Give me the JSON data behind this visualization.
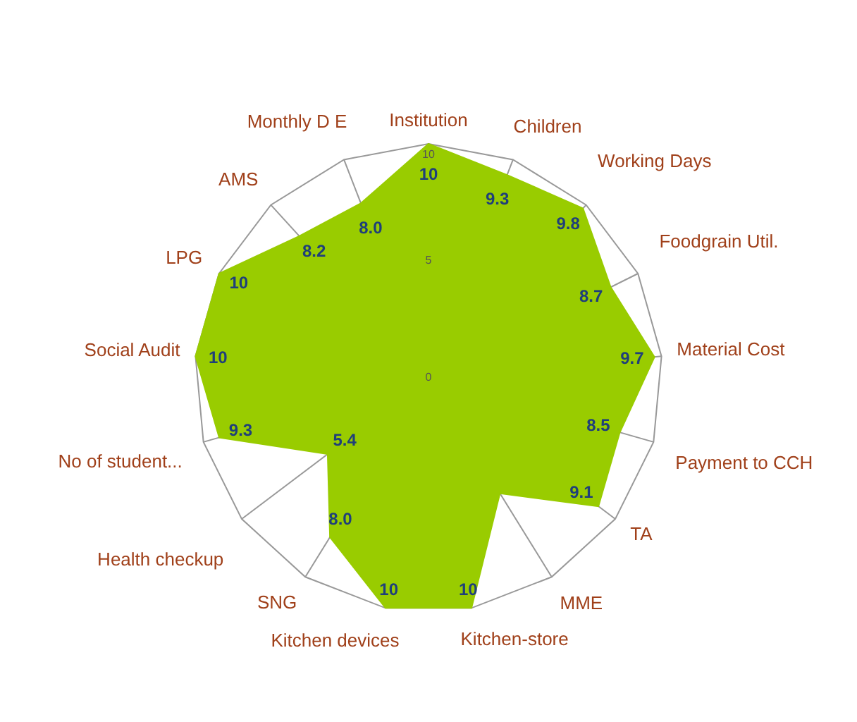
{
  "chart_data": {
    "type": "radar",
    "categories": [
      "Institution",
      "Children",
      "Working Days",
      "Foodgrain Util.",
      "Material Cost",
      "Payment to CCH",
      "TA",
      "MME",
      "Kitchen-store",
      "Kitchen devices",
      "SNG",
      "Health checkup",
      "No of student...",
      "Social Audit",
      "LPG",
      "AMS",
      "Monthly D E"
    ],
    "series": [
      {
        "color": "#99cc00",
        "values": [
          10,
          9.3,
          9.8,
          8.7,
          9.7,
          8.5,
          9.1,
          5.8,
          10,
          10,
          8.0,
          5.4,
          9.3,
          10,
          10,
          8.2,
          8.0
        ],
        "value_labels": [
          "10",
          "9.3",
          "9.8",
          "8.7",
          "9.7",
          "8.5",
          "9.1",
          null,
          "10",
          "10",
          "8.0",
          "5.4",
          "9.3",
          "10",
          "10",
          "8.2",
          "8.0"
        ]
      }
    ],
    "ylim": [
      0,
      10
    ],
    "yticks": [
      0,
      5,
      10
    ],
    "legend": false
  }
}
